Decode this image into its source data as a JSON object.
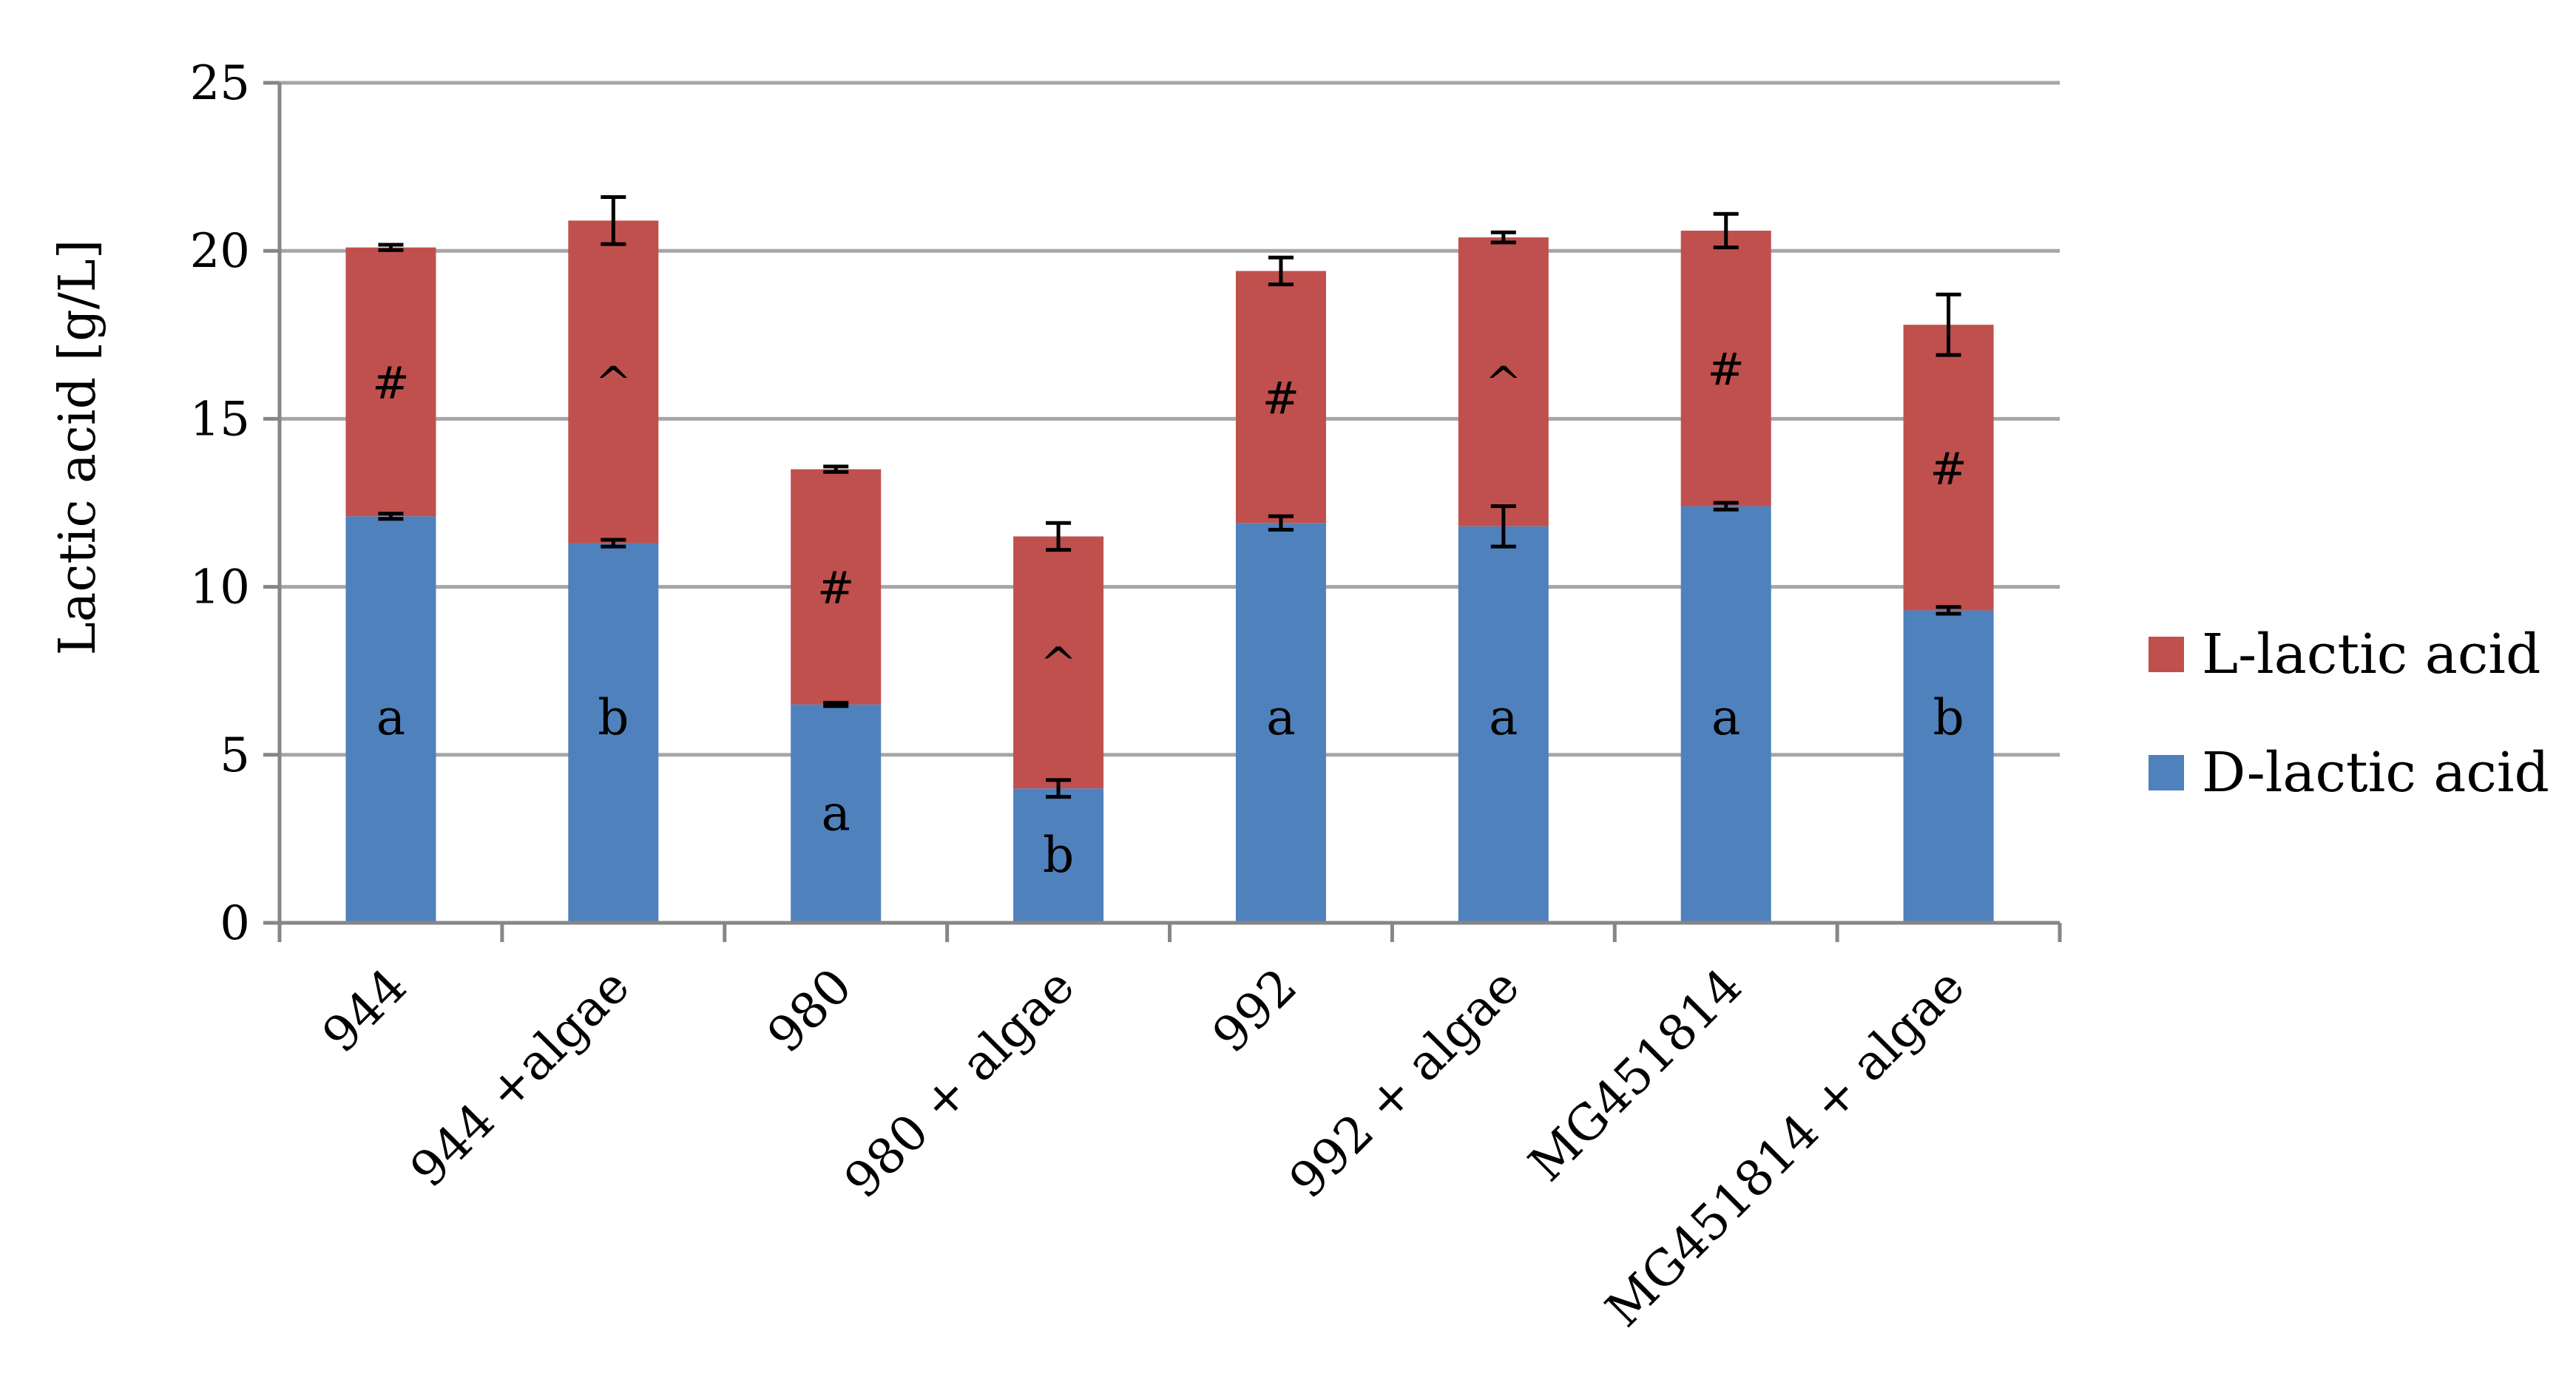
{
  "chart_data": {
    "type": "bar",
    "stacked": true,
    "title": "",
    "xlabel": "",
    "ylabel": "Lactic acid [g/L]",
    "ylim": [
      0,
      25
    ],
    "yticks": [
      0,
      5,
      10,
      15,
      20,
      25
    ],
    "grid": true,
    "legend_position": "right",
    "categories": [
      "944",
      "944 +algae",
      "980",
      "980 + algae",
      "992",
      "992 + algae",
      "MG451814",
      "MG451814 + algae"
    ],
    "series": [
      {
        "name": "D-lactic acid",
        "color": "#4f81bd",
        "values": [
          12.1,
          11.3,
          6.5,
          4.0,
          11.9,
          11.8,
          12.4,
          9.3
        ],
        "errors": [
          0.08,
          0.1,
          0.05,
          0.25,
          0.2,
          0.6,
          0.1,
          0.1
        ],
        "labels": [
          "a",
          "b",
          "a",
          "b",
          "a",
          "a",
          "a",
          "b"
        ]
      },
      {
        "name": "L-lactic acid",
        "color": "#c0504d",
        "values": [
          8.0,
          9.6,
          7.0,
          7.5,
          7.5,
          8.6,
          8.2,
          8.5
        ],
        "errors": [
          0.08,
          0.7,
          0.08,
          0.4,
          0.4,
          0.15,
          0.5,
          0.9
        ],
        "labels": [
          "#",
          "^",
          "#",
          "^",
          "#",
          "^",
          "#",
          "#"
        ]
      }
    ],
    "legend_order": [
      "L-lactic acid",
      "D-lactic acid"
    ],
    "colors": {
      "grid": "#a6a6a6",
      "axis": "#868686",
      "error_bar": "#000000"
    }
  }
}
